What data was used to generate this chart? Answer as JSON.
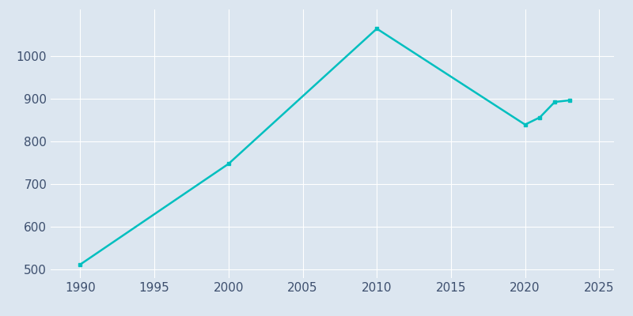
{
  "years": [
    1990,
    2000,
    2010,
    2020,
    2021,
    2022,
    2023
  ],
  "population": [
    512,
    748,
    1065,
    840,
    857,
    893,
    897
  ],
  "line_color": "#00BFBF",
  "marker": "s",
  "marker_size": 3.5,
  "line_width": 1.8,
  "fig_bg_color": "#dce6f0",
  "plot_bg_color": "#dce6f0",
  "grid_color": "#ffffff",
  "tick_label_color": "#3d4f6e",
  "xlim": [
    1988,
    2026
  ],
  "ylim": [
    480,
    1110
  ],
  "xticks": [
    1990,
    1995,
    2000,
    2005,
    2010,
    2015,
    2020,
    2025
  ],
  "yticks": [
    500,
    600,
    700,
    800,
    900,
    1000
  ],
  "tick_fontsize": 11
}
